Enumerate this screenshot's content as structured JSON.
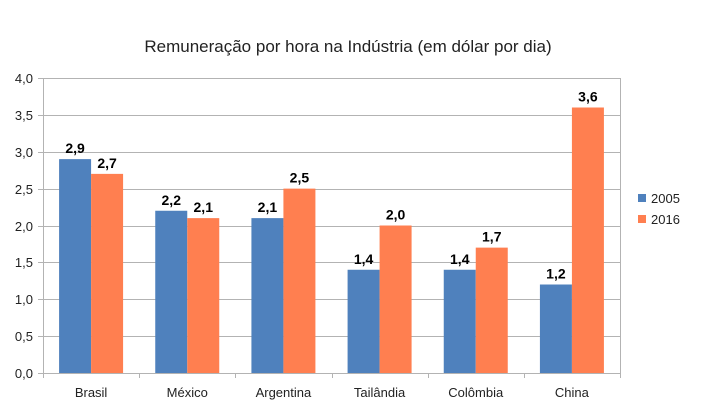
{
  "chart_data": {
    "type": "bar",
    "title": "Remuneração por hora na Indústria (em dólar por dia)",
    "xlabel": "",
    "ylabel": "",
    "ylim": [
      0,
      4
    ],
    "yticks": [
      "0,0",
      "0,5",
      "1,0",
      "1,5",
      "2,0",
      "2,5",
      "3,0",
      "3,5",
      "4,0"
    ],
    "ytick_values": [
      0,
      0.5,
      1,
      1.5,
      2,
      2.5,
      3,
      3.5,
      4
    ],
    "grid": true,
    "legend_position": "right",
    "categories": [
      "Brasil",
      "México",
      "Argentina",
      "Tailândia",
      "Colômbia",
      "China"
    ],
    "series": [
      {
        "name": "2005",
        "color": "#4f81bd",
        "values": [
          2.9,
          2.2,
          2.1,
          1.4,
          1.4,
          1.2
        ],
        "labels": [
          "2,9",
          "2,2",
          "2,1",
          "1,4",
          "1,4",
          "1,2"
        ]
      },
      {
        "name": "2016",
        "color": "#ff7f50",
        "values": [
          2.7,
          2.1,
          2.5,
          2.0,
          1.7,
          3.6
        ],
        "labels": [
          "2,7",
          "2,1",
          "2,5",
          "2,0",
          "1,7",
          "3,6"
        ]
      }
    ]
  }
}
